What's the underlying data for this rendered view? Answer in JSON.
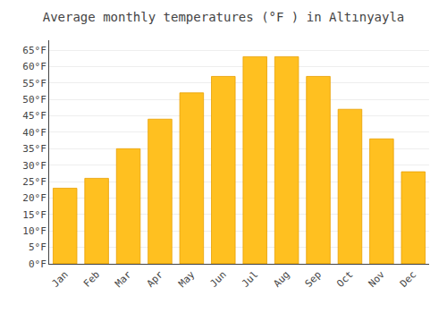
{
  "chart_data": {
    "type": "bar",
    "title": "Average monthly temperatures (°F ) in Altınyayla",
    "categories": [
      "Jan",
      "Feb",
      "Mar",
      "Apr",
      "May",
      "Jun",
      "Jul",
      "Aug",
      "Sep",
      "Oct",
      "Nov",
      "Dec"
    ],
    "values": [
      23,
      26,
      35,
      44,
      52,
      57,
      63,
      63,
      57,
      47,
      38,
      28
    ],
    "color": "#FFC020",
    "ylim": [
      0,
      68
    ],
    "yticks": [
      {
        "value": 0,
        "label": "0°F"
      },
      {
        "value": 5,
        "label": "5°F"
      },
      {
        "value": 10,
        "label": "10°F"
      },
      {
        "value": 15,
        "label": "15°F"
      },
      {
        "value": 20,
        "label": "20°F"
      },
      {
        "value": 25,
        "label": "25°F"
      },
      {
        "value": 30,
        "label": "30°F"
      },
      {
        "value": 35,
        "label": "35°F"
      },
      {
        "value": 40,
        "label": "40°F"
      },
      {
        "value": 45,
        "label": "45°F"
      },
      {
        "value": 50,
        "label": "50°F"
      },
      {
        "value": 55,
        "label": "55°F"
      },
      {
        "value": 60,
        "label": "60°F"
      },
      {
        "value": 65,
        "label": "65°F"
      }
    ],
    "grid": true
  }
}
